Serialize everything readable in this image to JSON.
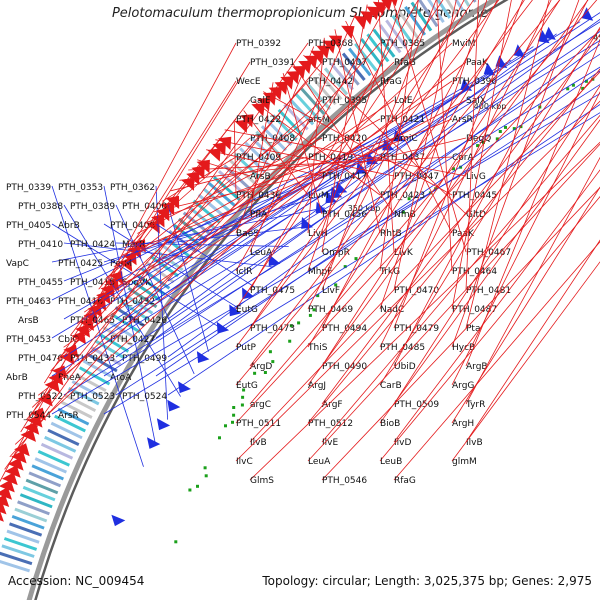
{
  "map": {
    "title": "Pelotomaculum thermopropionicum SI, complete genome",
    "accession": "Accession: NC_009454",
    "summary": "Topology: circular; Length: 3,025,375 bp; Genes: 2,975",
    "colors": {
      "forward": "#e41a1c",
      "reverse": "#1f2fe0",
      "backbone": "#8a8a8a",
      "tick": "#1aa01a"
    }
  },
  "ticks": [
    "350 kbp",
    "400 kbp",
    "450 kbp",
    "500 kbp",
    "550 kbp"
  ],
  "reverse_labels": [
    "PTH_0339",
    "PTH_0353",
    "PTH_0362",
    "PTH_0388",
    "PTH_0389",
    "PTH_0400",
    "PTH_0405",
    "AbrB",
    "PTH_0406",
    "PTH_0410",
    "PTH_0424",
    "MarR",
    "VapC",
    "PTH_0425",
    "PerM",
    "PTH_0455",
    "PTH_0415",
    "SpoVK",
    "PTH_0463",
    "PTH_0416",
    "PTH_0432",
    "ArsB",
    "PTH_0465",
    "PTH_0426",
    "PTH_0453",
    "CbiO",
    "PTH_0427",
    "PTH_0476",
    "PTH_0433",
    "PTH_0499",
    "AbrB",
    "PheA",
    "AroA",
    "PTH_0522",
    "PTH_0523",
    "PTH_0524",
    "PTH_0544",
    "ArsR"
  ],
  "forward_labels": [
    "PTH_0392",
    "PTH_0368",
    "PTH_0385",
    "MviM",
    "PTH_0391",
    "PTH_0407",
    "RfaG",
    "PaaK",
    "WecE",
    "PTH_0442",
    "RfaG",
    "PTH_0396",
    "GalE",
    "PTH_0395",
    "LolE",
    "SalX",
    "PTH_0422",
    "arsM",
    "PTH_0421",
    "ArsR",
    "PTH_0408",
    "PTH_0420",
    "AmiC",
    "DegQ",
    "PTH_0409",
    "PTH_0419",
    "PTH_0437",
    "CorA",
    "ArsB",
    "PTH_0417",
    "PTH_0447",
    "LivG",
    "PTH_0436",
    "LivM",
    "PTH_0423",
    "PTH_0445",
    "PflA",
    "PTH_0456",
    "NfnB",
    "GltD",
    "BaeS",
    "LivH",
    "RhtB",
    "PaaK",
    "LeuA",
    "OmpR",
    "LivK",
    "PTH_0467",
    "IclR",
    "MhpF",
    "TrkG",
    "PTH_0464",
    "PTH_0475",
    "LivF",
    "PTH_0470",
    "PTH_0481",
    "EutG",
    "PTH_0469",
    "NadC",
    "PTH_0487",
    "PTH_0473",
    "PTH_0494",
    "PTH_0479",
    "Pta",
    "PutP",
    "ThiS",
    "PTH_0485",
    "HycB",
    "ArgD",
    "PTH_0490",
    "UbiD",
    "ArgB",
    "EutG",
    "ArgJ",
    "CarB",
    "ArgG",
    "argC",
    "ArgF",
    "PTH_0509",
    "TyrR",
    "PTH_0511",
    "PTH_0512",
    "BioB",
    "ArgH",
    "IlvB",
    "IlvE",
    "IlvD",
    "IlvB",
    "IlvC",
    "LeuA",
    "LeuB",
    "glmM",
    "GlmS",
    "PTH_0546",
    "RfaG"
  ]
}
